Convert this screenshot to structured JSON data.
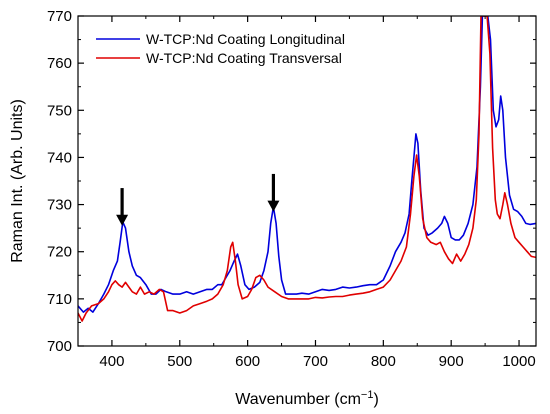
{
  "chart_data": {
    "type": "line",
    "title": "",
    "xlabel": "Wavenumber (cm",
    "xlabel_sup": "−1",
    "xlabel_end": ")",
    "ylabel": "Raman Int. (Arb. Units)",
    "xlim": [
      350,
      1025
    ],
    "ylim": [
      700,
      770
    ],
    "xticks": [
      400,
      500,
      600,
      700,
      800,
      900,
      1000
    ],
    "yticks": [
      700,
      710,
      720,
      730,
      740,
      750,
      760,
      770
    ],
    "legend_position": "top-left",
    "grid": false,
    "series": [
      {
        "name": "W-TCP:Nd Coating Longitudinal",
        "color": "#0000dd",
        "points": [
          [
            350,
            708.5
          ],
          [
            358,
            707.2
          ],
          [
            365,
            708
          ],
          [
            372,
            707.2
          ],
          [
            380,
            709
          ],
          [
            388,
            711
          ],
          [
            395,
            713
          ],
          [
            402,
            716
          ],
          [
            408,
            718
          ],
          [
            412,
            722
          ],
          [
            416,
            726.3
          ],
          [
            420,
            725
          ],
          [
            425,
            720
          ],
          [
            430,
            717
          ],
          [
            436,
            715
          ],
          [
            442,
            714.5
          ],
          [
            450,
            713
          ],
          [
            458,
            711
          ],
          [
            465,
            711
          ],
          [
            472,
            712
          ],
          [
            480,
            711.5
          ],
          [
            490,
            711
          ],
          [
            500,
            711
          ],
          [
            510,
            711.5
          ],
          [
            520,
            711
          ],
          [
            530,
            711.5
          ],
          [
            540,
            712
          ],
          [
            548,
            712
          ],
          [
            556,
            713
          ],
          [
            562,
            713
          ],
          [
            568,
            714.5
          ],
          [
            574,
            716
          ],
          [
            580,
            718
          ],
          [
            585,
            719.5
          ],
          [
            590,
            717
          ],
          [
            596,
            713
          ],
          [
            602,
            712
          ],
          [
            610,
            712.5
          ],
          [
            618,
            713.5
          ],
          [
            624,
            716
          ],
          [
            630,
            720
          ],
          [
            634,
            726
          ],
          [
            638,
            729.5
          ],
          [
            642,
            726
          ],
          [
            646,
            719
          ],
          [
            650,
            714
          ],
          [
            656,
            711
          ],
          [
            664,
            711
          ],
          [
            672,
            711
          ],
          [
            680,
            711.2
          ],
          [
            690,
            711
          ],
          [
            700,
            711.5
          ],
          [
            710,
            712
          ],
          [
            720,
            711.8
          ],
          [
            730,
            712
          ],
          [
            740,
            712.5
          ],
          [
            750,
            712.3
          ],
          [
            760,
            712.5
          ],
          [
            770,
            712.8
          ],
          [
            780,
            713
          ],
          [
            790,
            713
          ],
          [
            800,
            714
          ],
          [
            810,
            717
          ],
          [
            818,
            720
          ],
          [
            826,
            722
          ],
          [
            832,
            724
          ],
          [
            838,
            728
          ],
          [
            842,
            735
          ],
          [
            845,
            740
          ],
          [
            848,
            745
          ],
          [
            851,
            743
          ],
          [
            855,
            733
          ],
          [
            860,
            725
          ],
          [
            866,
            723.5
          ],
          [
            872,
            724
          ],
          [
            880,
            725
          ],
          [
            886,
            726
          ],
          [
            890,
            727.5
          ],
          [
            895,
            726
          ],
          [
            900,
            723
          ],
          [
            906,
            722.5
          ],
          [
            912,
            722.5
          ],
          [
            918,
            723.5
          ],
          [
            925,
            726
          ],
          [
            932,
            730
          ],
          [
            938,
            738
          ],
          [
            943,
            755
          ],
          [
            946,
            770
          ],
          [
            950,
            770
          ],
          [
            954,
            770
          ],
          [
            958,
            765
          ],
          [
            962,
            750
          ],
          [
            966,
            746.5
          ],
          [
            970,
            748
          ],
          [
            973,
            753
          ],
          [
            976,
            750
          ],
          [
            980,
            740
          ],
          [
            986,
            732
          ],
          [
            992,
            729
          ],
          [
            998,
            728.5
          ],
          [
            1004,
            727.5
          ],
          [
            1010,
            726
          ],
          [
            1016,
            725.8
          ],
          [
            1025,
            726
          ]
        ]
      },
      {
        "name": "W-TCP:Nd Coating Transversal",
        "color": "#e00000",
        "points": [
          [
            350,
            707
          ],
          [
            356,
            705.3
          ],
          [
            362,
            707
          ],
          [
            370,
            708.5
          ],
          [
            380,
            709
          ],
          [
            388,
            710
          ],
          [
            395,
            711.5
          ],
          [
            400,
            713
          ],
          [
            405,
            713.8
          ],
          [
            410,
            713
          ],
          [
            415,
            712.5
          ],
          [
            420,
            713.5
          ],
          [
            425,
            712.5
          ],
          [
            430,
            711.5
          ],
          [
            436,
            711
          ],
          [
            442,
            712.5
          ],
          [
            448,
            711
          ],
          [
            455,
            711.5
          ],
          [
            462,
            711
          ],
          [
            470,
            712
          ],
          [
            476,
            711.5
          ],
          [
            482,
            707.5
          ],
          [
            490,
            707.5
          ],
          [
            500,
            707
          ],
          [
            510,
            707.5
          ],
          [
            520,
            708.5
          ],
          [
            530,
            709
          ],
          [
            540,
            709.5
          ],
          [
            548,
            710
          ],
          [
            556,
            711
          ],
          [
            564,
            713
          ],
          [
            570,
            716
          ],
          [
            575,
            721
          ],
          [
            578,
            722
          ],
          [
            582,
            718
          ],
          [
            586,
            713
          ],
          [
            592,
            710
          ],
          [
            600,
            710.5
          ],
          [
            606,
            712
          ],
          [
            612,
            714.5
          ],
          [
            618,
            715
          ],
          [
            624,
            714
          ],
          [
            630,
            712.5
          ],
          [
            640,
            711.5
          ],
          [
            650,
            710.5
          ],
          [
            660,
            710
          ],
          [
            670,
            710
          ],
          [
            680,
            710
          ],
          [
            690,
            710
          ],
          [
            700,
            710.3
          ],
          [
            710,
            710.2
          ],
          [
            720,
            710.4
          ],
          [
            730,
            710.5
          ],
          [
            740,
            710.5
          ],
          [
            750,
            710.8
          ],
          [
            760,
            711
          ],
          [
            770,
            711.2
          ],
          [
            780,
            711.5
          ],
          [
            790,
            712
          ],
          [
            800,
            712.5
          ],
          [
            810,
            714
          ],
          [
            818,
            716
          ],
          [
            826,
            718
          ],
          [
            834,
            721
          ],
          [
            840,
            728
          ],
          [
            845,
            736
          ],
          [
            849,
            740.5
          ],
          [
            853,
            736
          ],
          [
            858,
            727
          ],
          [
            864,
            723
          ],
          [
            870,
            722
          ],
          [
            878,
            721.5
          ],
          [
            884,
            722
          ],
          [
            890,
            720
          ],
          [
            896,
            718.5
          ],
          [
            902,
            717.5
          ],
          [
            908,
            719.5
          ],
          [
            914,
            718
          ],
          [
            920,
            719.5
          ],
          [
            926,
            721.5
          ],
          [
            932,
            725
          ],
          [
            937,
            731
          ],
          [
            941,
            745
          ],
          [
            944,
            770
          ],
          [
            948,
            770
          ],
          [
            953,
            770
          ],
          [
            957,
            762
          ],
          [
            961,
            742
          ],
          [
            965,
            731
          ],
          [
            968,
            728
          ],
          [
            972,
            727
          ],
          [
            976,
            730
          ],
          [
            979,
            732.5
          ],
          [
            983,
            730
          ],
          [
            988,
            726
          ],
          [
            994,
            723
          ],
          [
            1000,
            722
          ],
          [
            1006,
            721
          ],
          [
            1012,
            720
          ],
          [
            1018,
            719
          ],
          [
            1025,
            718.8
          ]
        ]
      }
    ],
    "annotations": [
      {
        "type": "down-arrow",
        "x": 415,
        "y_from": 725.5,
        "y_to": 733.5
      },
      {
        "type": "down-arrow",
        "x": 638,
        "y_from": 728.5,
        "y_to": 736.5
      }
    ]
  }
}
